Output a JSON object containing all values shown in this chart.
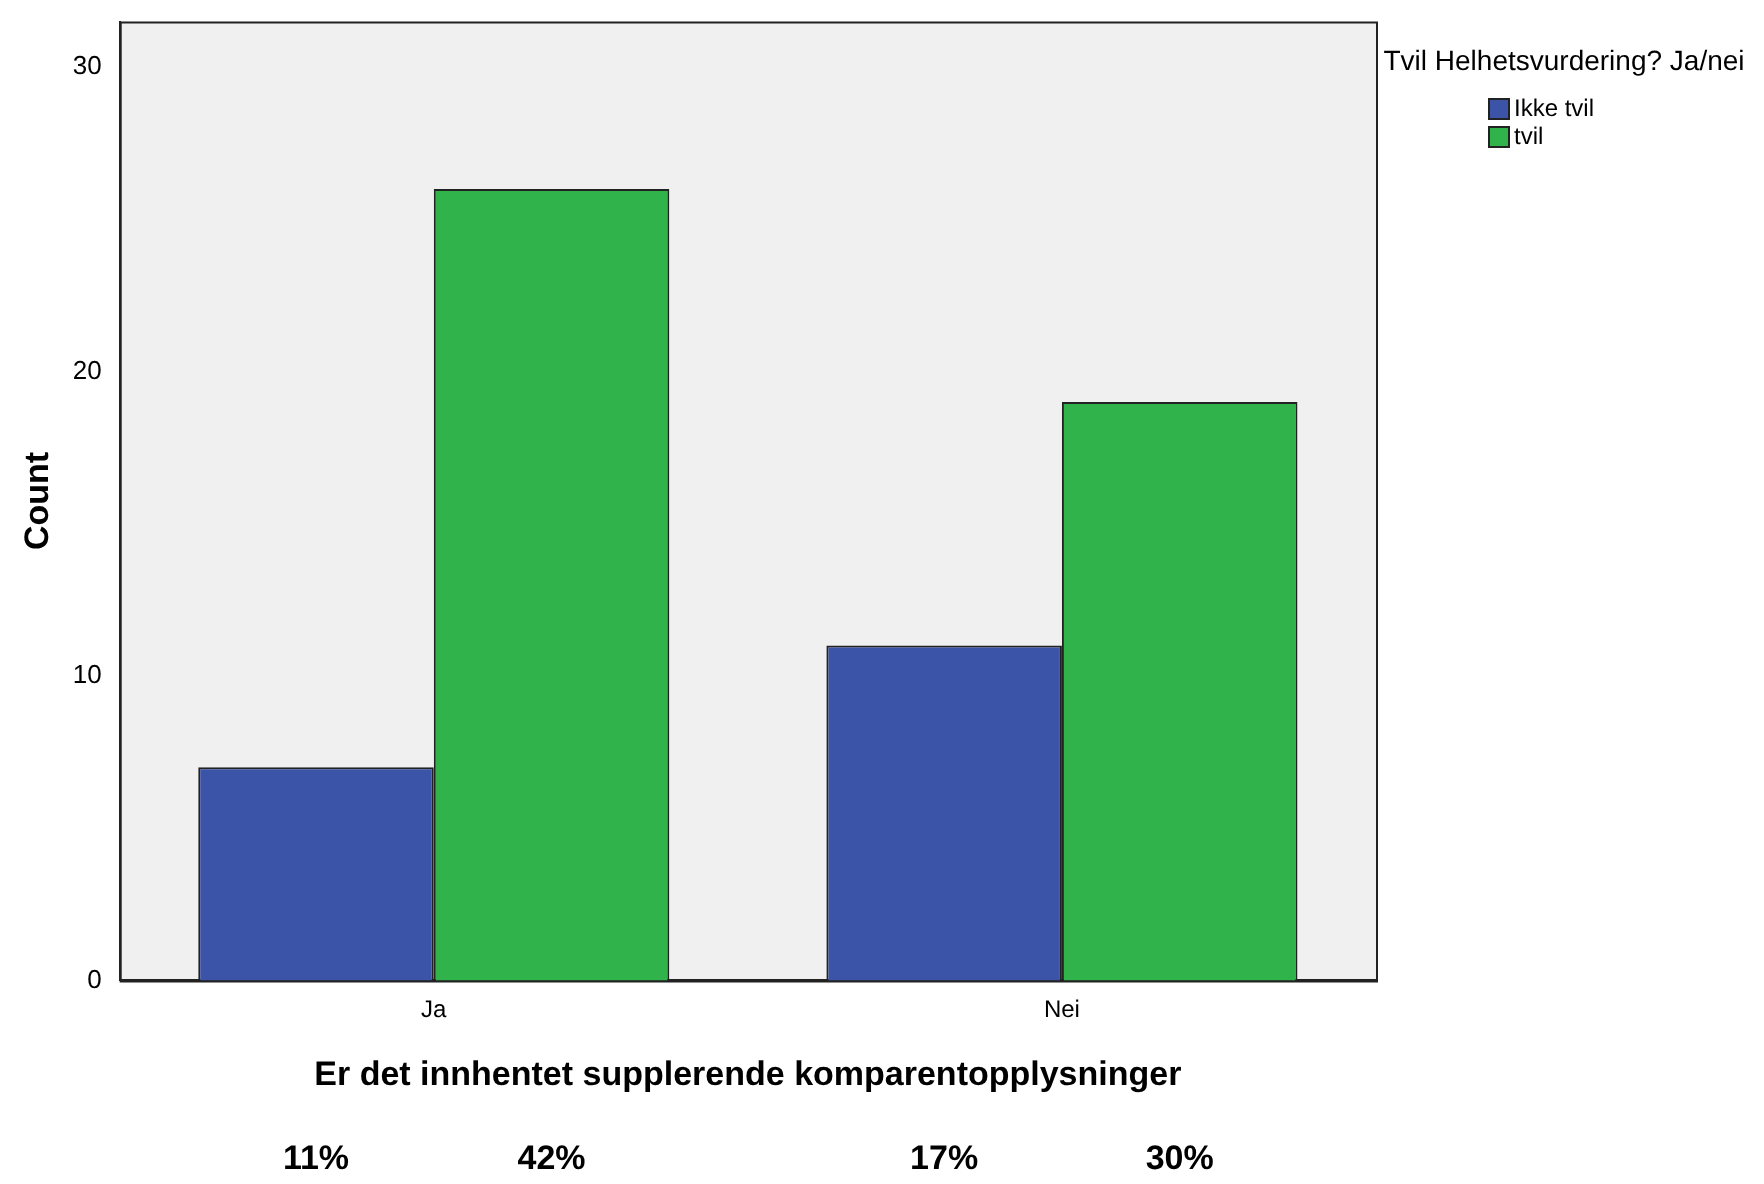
{
  "chart_data": {
    "type": "bar",
    "xlabel": "Er det innhentet supplerende komparentopplysninger",
    "ylabel": "Count",
    "legend_title": "Tvil Helhetsvurdering? Ja/nei",
    "categories": [
      "Ja",
      "Nei"
    ],
    "series": [
      {
        "name": "Ikke tvil",
        "color": "#3c54a8",
        "values": [
          7,
          11
        ]
      },
      {
        "name": "tvil",
        "color": "#2fb34a",
        "values": [
          26,
          19
        ]
      }
    ],
    "annotations": [
      "11%",
      "42%",
      "17%",
      "30%"
    ],
    "ylim": [
      0,
      31.5
    ],
    "yticks": [
      0,
      10,
      20,
      30
    ],
    "grid": false,
    "legend": "top right"
  }
}
